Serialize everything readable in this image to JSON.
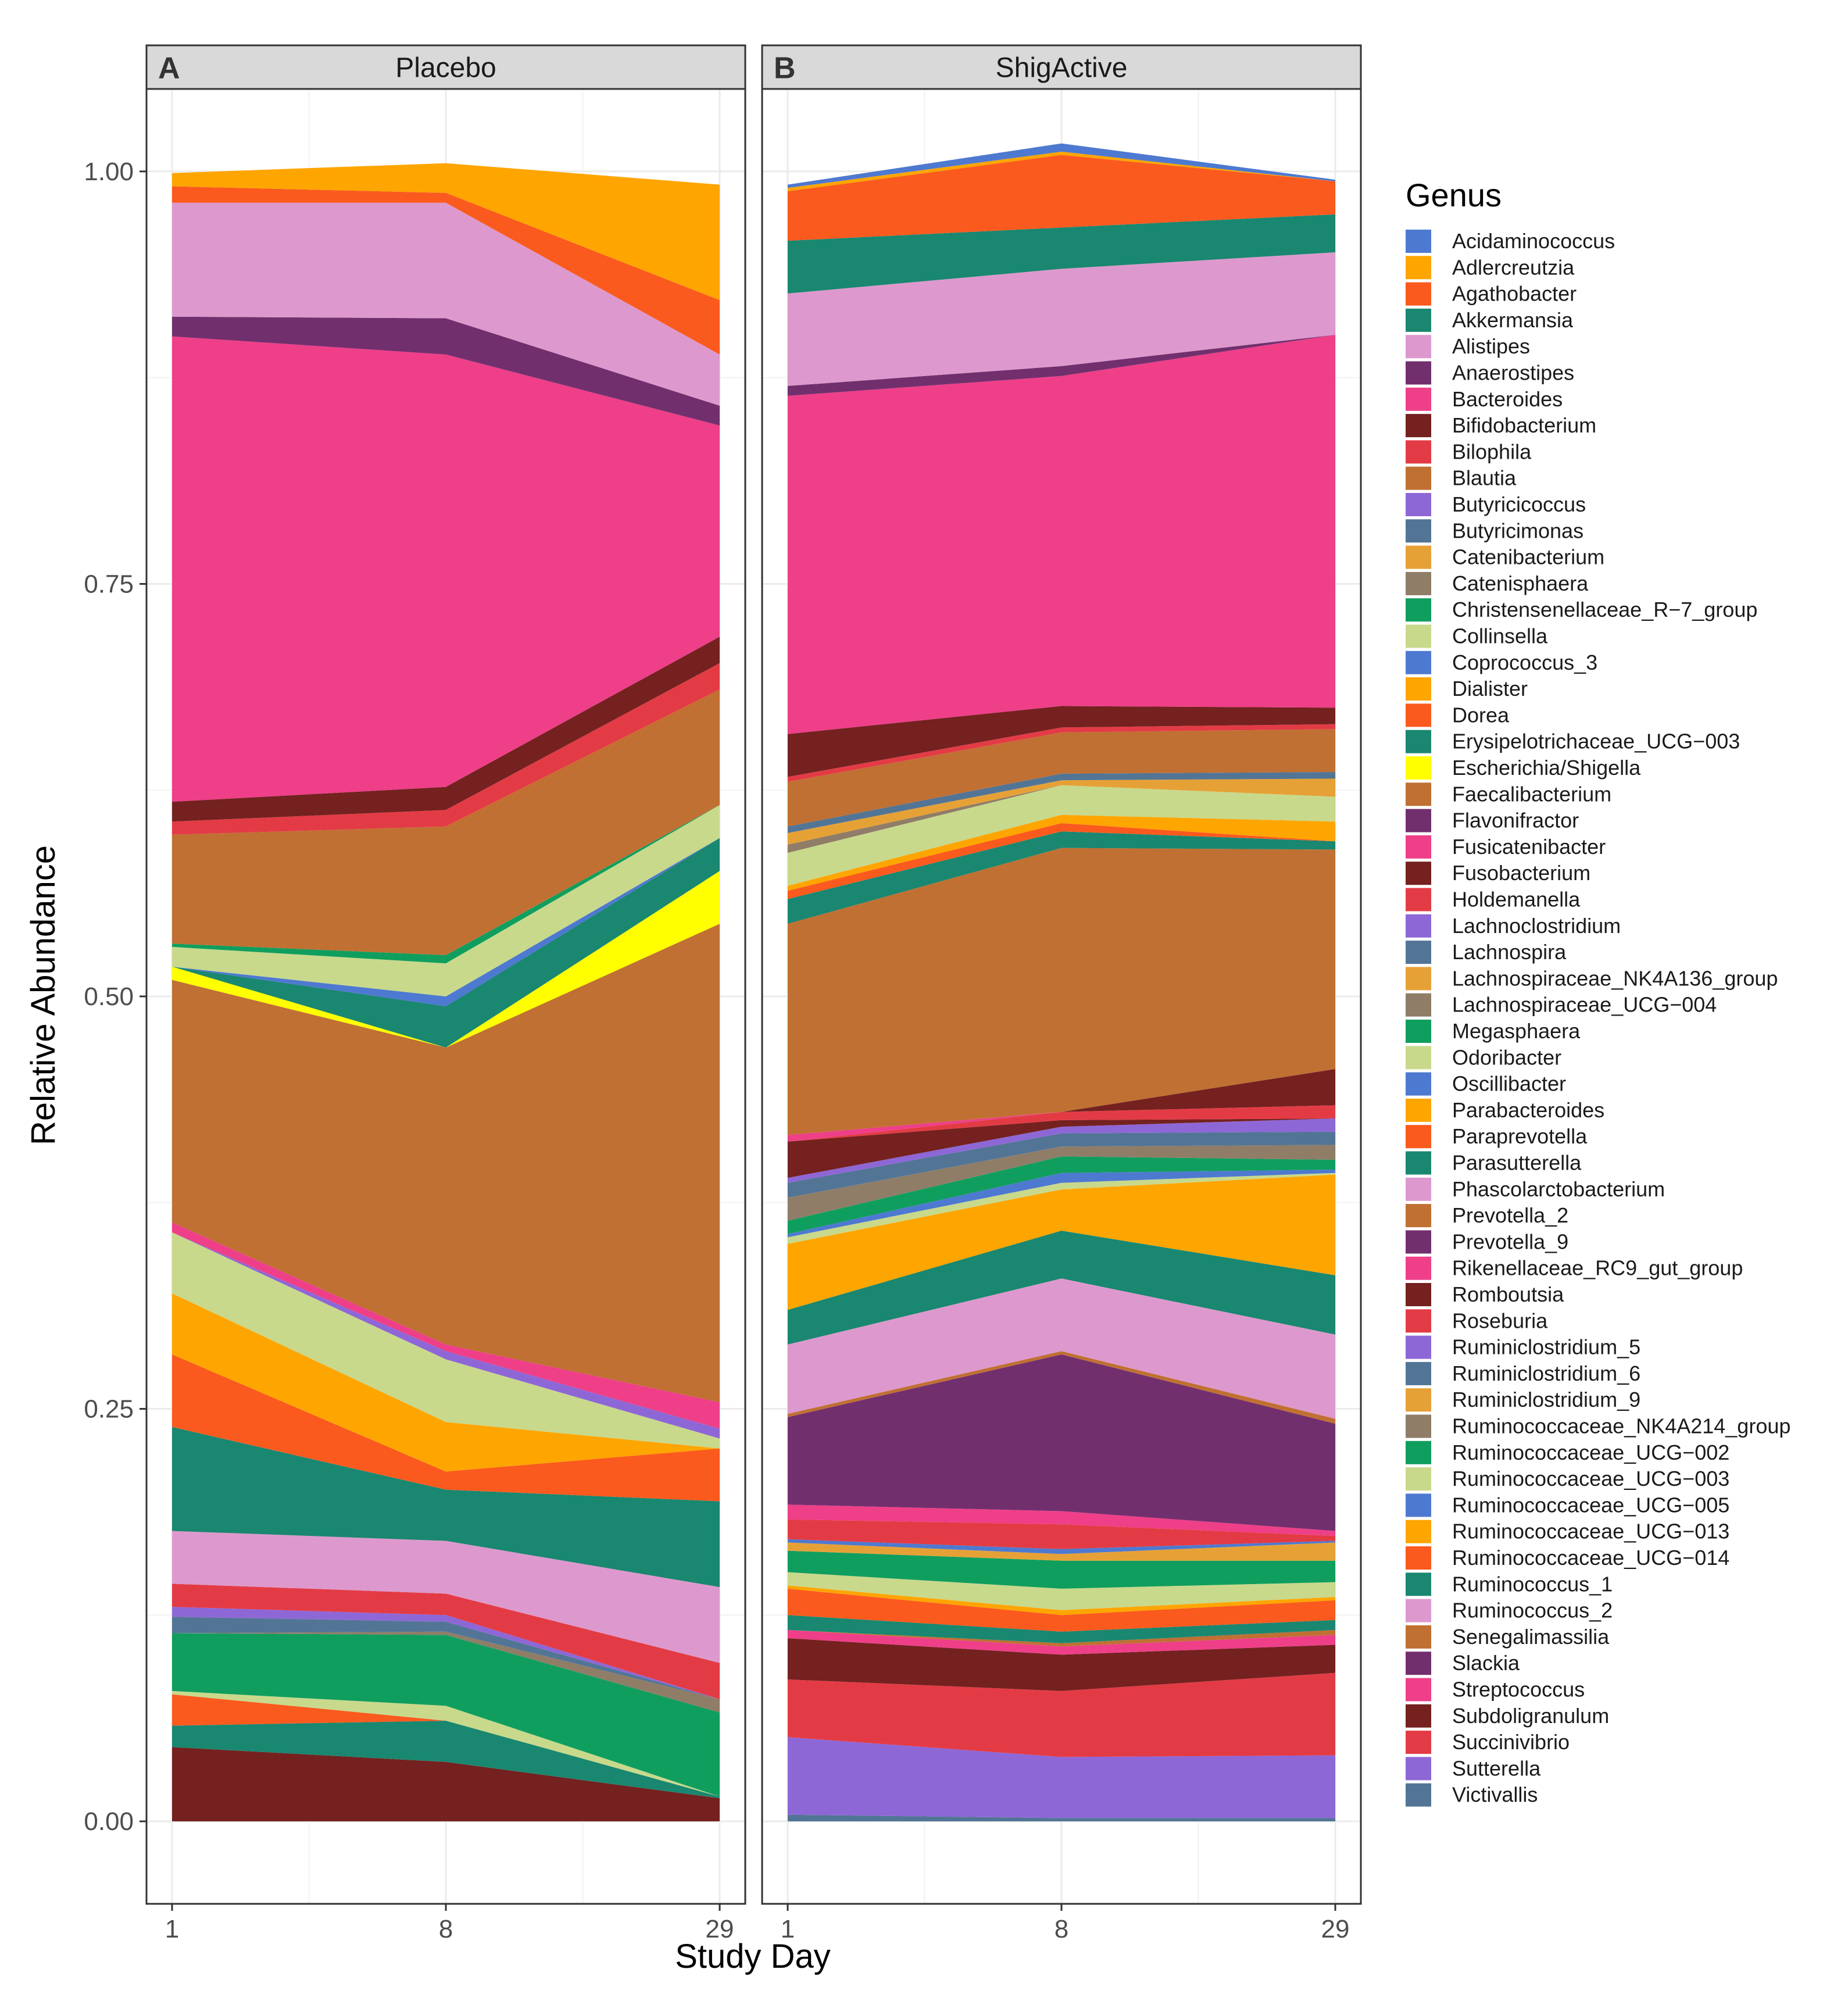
{
  "chart_data": {
    "type": "area",
    "stacked": true,
    "xlabel": "Study Day",
    "ylabel": "Relative Abundance",
    "ylim": [
      -0.05,
      1.05
    ],
    "y_ticks": [
      "0.00",
      "0.25",
      "0.50",
      "0.75",
      "1.00"
    ],
    "x": [
      "1",
      "8",
      "29"
    ],
    "grid": true,
    "legend_title": "Genus",
    "legend_position": "right",
    "genera": [
      {
        "name": "Acidaminococcus",
        "color": "#4E79D0"
      },
      {
        "name": "Adlercreutzia",
        "color": "#FFA500"
      },
      {
        "name": "Agathobacter",
        "color": "#FA5A1E"
      },
      {
        "name": "Akkermansia",
        "color": "#1A8770"
      },
      {
        "name": "Alistipes",
        "color": "#DD99CD"
      },
      {
        "name": "Anaerostipes",
        "color": "#722F6E"
      },
      {
        "name": "Bacteroides",
        "color": "#EE3F88"
      },
      {
        "name": "Bifidobacterium",
        "color": "#742120"
      },
      {
        "name": "Bilophila",
        "color": "#E33B45"
      },
      {
        "name": "Blautia",
        "color": "#C07033"
      },
      {
        "name": "Butyricicoccus",
        "color": "#8E67D6"
      },
      {
        "name": "Butyricimonas",
        "color": "#527596"
      },
      {
        "name": "Catenibacterium",
        "color": "#E6A136"
      },
      {
        "name": "Catenisphaera",
        "color": "#8F7D68"
      },
      {
        "name": "Christensenellaceae_R−7_group",
        "color": "#109E5E"
      },
      {
        "name": "Collinsella",
        "color": "#C8D98C"
      },
      {
        "name": "Coprococcus_3",
        "color": "#4E79D0"
      },
      {
        "name": "Dialister",
        "color": "#FFA500"
      },
      {
        "name": "Dorea",
        "color": "#FA5A1E"
      },
      {
        "name": "Erysipelotrichaceae_UCG−003",
        "color": "#1A8770"
      },
      {
        "name": "Escherichia/Shigella",
        "color": "#FFFF00"
      },
      {
        "name": "Faecalibacterium",
        "color": "#C07033"
      },
      {
        "name": "Flavonifractor",
        "color": "#722F6E"
      },
      {
        "name": "Fusicatenibacter",
        "color": "#EE3F88"
      },
      {
        "name": "Fusobacterium",
        "color": "#742120"
      },
      {
        "name": "Holdemanella",
        "color": "#E33B45"
      },
      {
        "name": "Lachnoclostridium",
        "color": "#8E67D6"
      },
      {
        "name": "Lachnospira",
        "color": "#527596"
      },
      {
        "name": "Lachnospiraceae_NK4A136_group",
        "color": "#E6A136"
      },
      {
        "name": "Lachnospiraceae_UCG−004",
        "color": "#8F7D68"
      },
      {
        "name": "Megasphaera",
        "color": "#109E5E"
      },
      {
        "name": "Odoribacter",
        "color": "#C8D98C"
      },
      {
        "name": "Oscillibacter",
        "color": "#4E79D0"
      },
      {
        "name": "Parabacteroides",
        "color": "#FFA500"
      },
      {
        "name": "Paraprevotella",
        "color": "#FA5A1E"
      },
      {
        "name": "Parasutterella",
        "color": "#1A8770"
      },
      {
        "name": "Phascolarctobacterium",
        "color": "#DD99CD"
      },
      {
        "name": "Prevotella_2",
        "color": "#C07033"
      },
      {
        "name": "Prevotella_9",
        "color": "#722F6E"
      },
      {
        "name": "Rikenellaceae_RC9_gut_group",
        "color": "#EE3F88"
      },
      {
        "name": "Romboutsia",
        "color": "#742120"
      },
      {
        "name": "Roseburia",
        "color": "#E33B45"
      },
      {
        "name": "Ruminiclostridium_5",
        "color": "#8E67D6"
      },
      {
        "name": "Ruminiclostridium_6",
        "color": "#527596"
      },
      {
        "name": "Ruminiclostridium_9",
        "color": "#E6A136"
      },
      {
        "name": "Ruminococcaceae_NK4A214_group",
        "color": "#8F7D68"
      },
      {
        "name": "Ruminococcaceae_UCG−002",
        "color": "#109E5E"
      },
      {
        "name": "Ruminococcaceae_UCG−003",
        "color": "#C8D98C"
      },
      {
        "name": "Ruminococcaceae_UCG−005",
        "color": "#4E79D0"
      },
      {
        "name": "Ruminococcaceae_UCG−013",
        "color": "#FFA500"
      },
      {
        "name": "Ruminococcaceae_UCG−014",
        "color": "#FA5A1E"
      },
      {
        "name": "Ruminococcus_1",
        "color": "#1A8770"
      },
      {
        "name": "Ruminococcus_2",
        "color": "#DD99CD"
      },
      {
        "name": "Senegalimassilia",
        "color": "#C07033"
      },
      {
        "name": "Slackia",
        "color": "#722F6E"
      },
      {
        "name": "Streptococcus",
        "color": "#EE3F88"
      },
      {
        "name": "Subdoligranulum",
        "color": "#742120"
      },
      {
        "name": "Succinivibrio",
        "color": "#E33B45"
      },
      {
        "name": "Sutterella",
        "color": "#8E67D6"
      },
      {
        "name": "Victivallis",
        "color": "#527596"
      }
    ],
    "panels": [
      {
        "tag": "A",
        "title": "Placebo",
        "layers": [
          {
            "genus": "Subdoligranulum",
            "values": [
              0.045,
              0.036,
              0.014
            ]
          },
          {
            "genus": "Ruminococcus_1",
            "values": [
              0.013,
              0.025,
              0.001
            ]
          },
          {
            "genus": "Ruminococcaceae_UCG−014",
            "values": [
              0.019,
              0.0,
              0.0
            ]
          },
          {
            "genus": "Ruminococcaceae_UCG−003",
            "values": [
              0.002,
              0.009,
              0.0
            ]
          },
          {
            "genus": "Ruminococcaceae_UCG−002",
            "values": [
              0.035,
              0.043,
              0.051
            ]
          },
          {
            "genus": "Ruminococcaceae_NK4A214_group",
            "values": [
              0.0,
              0.002,
              0.008
            ]
          },
          {
            "genus": "Ruminiclostridium_6",
            "values": [
              0.01,
              0.006,
              0.0
            ]
          },
          {
            "genus": "Ruminiclostridium_5",
            "values": [
              0.006,
              0.004,
              0.0
            ]
          },
          {
            "genus": "Roseburia",
            "values": [
              0.014,
              0.013,
              0.022
            ]
          },
          {
            "genus": "Ruminococcus_2",
            "values": [
              0.032,
              0.032,
              0.046
            ]
          },
          {
            "genus": "Ruminococcus_1",
            "values": [
              0.063,
              0.031,
              0.052
            ]
          },
          {
            "genus": "Ruminococcaceae_UCG−014",
            "values": [
              0.044,
              0.011,
              0.032
            ]
          },
          {
            "genus": "Ruminococcaceae_UCG−013",
            "values": [
              0.037,
              0.03,
              0.0
            ]
          },
          {
            "genus": "Ruminococcaceae_UCG−003",
            "values": [
              0.037,
              0.038,
              0.006
            ]
          },
          {
            "genus": "Ruminiclostridium_5",
            "values": [
              0.0,
              0.005,
              0.006
            ]
          },
          {
            "genus": "Rikenellaceae_RC9_gut_group",
            "values": [
              0.006,
              0.004,
              0.016
            ]
          },
          {
            "genus": "Prevotella_2",
            "values": [
              0.147,
              0.18,
              0.29
            ]
          },
          {
            "genus": "Escherichia/Shigella",
            "values": [
              0.008,
              0.0,
              0.032
            ]
          },
          {
            "genus": "Parasutterella",
            "values": [
              0.0,
              0.025,
              0.02
            ]
          },
          {
            "genus": "Oscillibacter",
            "values": [
              0.0,
              0.006,
              0.0
            ]
          },
          {
            "genus": "Odoribacter",
            "values": [
              0.012,
              0.02,
              0.02
            ]
          },
          {
            "genus": "Megasphaera",
            "values": [
              0.002,
              0.005,
              0.0
            ]
          },
          {
            "genus": "Faecalibacterium",
            "values": [
              0.066,
              0.078,
              0.07
            ]
          },
          {
            "genus": "Bilophila",
            "values": [
              0.008,
              0.01,
              0.016
            ]
          },
          {
            "genus": "Bifidobacterium",
            "values": [
              0.012,
              0.014,
              0.016
            ]
          },
          {
            "genus": "Bacteroides",
            "values": [
              0.282,
              0.262,
              0.128
            ]
          },
          {
            "genus": "Anaerostipes",
            "values": [
              0.012,
              0.022,
              0.012
            ]
          },
          {
            "genus": "Alistipes",
            "values": [
              0.069,
              0.07,
              0.031
            ]
          },
          {
            "genus": "Agathobacter",
            "values": [
              0.01,
              0.006,
              0.033
            ]
          },
          {
            "genus": "Adlercreutzia",
            "values": [
              0.008,
              0.018,
              0.07
            ]
          }
        ]
      },
      {
        "tag": "B",
        "title": "ShigActive",
        "layers": [
          {
            "genus": "Victivallis",
            "values": [
              0.004,
              0.002,
              0.002
            ]
          },
          {
            "genus": "Sutterella",
            "values": [
              0.047,
              0.037,
              0.038
            ]
          },
          {
            "genus": "Succinivibrio",
            "values": [
              0.035,
              0.04,
              0.05
            ]
          },
          {
            "genus": "Subdoligranulum",
            "values": [
              0.025,
              0.022,
              0.017
            ]
          },
          {
            "genus": "Streptococcus",
            "values": [
              0.005,
              0.005,
              0.006
            ]
          },
          {
            "genus": "Senegalimassilia",
            "values": [
              0.0,
              0.002,
              0.003
            ]
          },
          {
            "genus": "Ruminococcus_1",
            "values": [
              0.009,
              0.007,
              0.006
            ]
          },
          {
            "genus": "Ruminococcaceae_UCG−014",
            "values": [
              0.016,
              0.01,
              0.012
            ]
          },
          {
            "genus": "Ruminococcaceae_UCG−013",
            "values": [
              0.002,
              0.003,
              0.002
            ]
          },
          {
            "genus": "Ruminococcaceae_UCG−003",
            "values": [
              0.008,
              0.013,
              0.009
            ]
          },
          {
            "genus": "Ruminococcaceae_UCG−002",
            "values": [
              0.013,
              0.017,
              0.013
            ]
          },
          {
            "genus": "Ruminiclostridium_9",
            "values": [
              0.005,
              0.004,
              0.011
            ]
          },
          {
            "genus": "Ruminococcaceae_UCG−005",
            "values": [
              0.002,
              0.003,
              0.001
            ]
          },
          {
            "genus": "Roseburia",
            "values": [
              0.012,
              0.015,
              0.003
            ]
          },
          {
            "genus": "Streptococcus",
            "values": [
              0.009,
              0.008,
              0.003
            ]
          },
          {
            "genus": "Slackia",
            "values": [
              0.053,
              0.095,
              0.065
            ]
          },
          {
            "genus": "Senegalimassilia",
            "values": [
              0.002,
              0.002,
              0.003
            ]
          },
          {
            "genus": "Ruminococcus_2",
            "values": [
              0.042,
              0.044,
              0.051
            ]
          },
          {
            "genus": "Ruminococcus_1",
            "values": [
              0.021,
              0.029,
              0.036
            ]
          },
          {
            "genus": "Ruminococcaceae_UCG−013",
            "values": [
              0.04,
              0.025,
              0.061
            ]
          },
          {
            "genus": "Ruminococcaceae_UCG−003",
            "values": [
              0.004,
              0.004,
              0.001
            ]
          },
          {
            "genus": "Ruminococcaceae_UCG−005",
            "values": [
              0.002,
              0.006,
              0.002
            ]
          },
          {
            "genus": "Ruminococcaceae_UCG−002",
            "values": [
              0.008,
              0.01,
              0.006
            ]
          },
          {
            "genus": "Ruminococcaceae_NK4A214_group",
            "values": [
              0.014,
              0.006,
              0.009
            ]
          },
          {
            "genus": "Ruminiclostridium_6",
            "values": [
              0.009,
              0.008,
              0.008
            ]
          },
          {
            "genus": "Ruminiclostridium_5",
            "values": [
              0.003,
              0.004,
              0.008
            ]
          },
          {
            "genus": "Romboutsia",
            "values": [
              0.022,
              0.004,
              0.0
            ]
          },
          {
            "genus": "Roseburia",
            "values": [
              0.0,
              0.005,
              0.008
            ]
          },
          {
            "genus": "Rikenellaceae_RC9_gut_group",
            "values": [
              0.004,
              0.0,
              0.0
            ]
          },
          {
            "genus": "Romboutsia",
            "values": [
              0.0,
              0.0,
              0.022
            ]
          },
          {
            "genus": "Prevotella_2",
            "values": [
              0.128,
              0.16,
              0.133
            ]
          },
          {
            "genus": "Parasutterella",
            "values": [
              0.015,
              0.01,
              0.005
            ]
          },
          {
            "genus": "Paraprevotella",
            "values": [
              0.005,
              0.005,
              0.0
            ]
          },
          {
            "genus": "Parabacteroides",
            "values": [
              0.003,
              0.005,
              0.012
            ]
          },
          {
            "genus": "Odoribacter",
            "values": [
              0.02,
              0.018,
              0.015
            ]
          },
          {
            "genus": "Lachnospiraceae_UCG−004",
            "values": [
              0.005,
              0.0,
              0.0
            ]
          },
          {
            "genus": "Lachnospiraceae_NK4A136_group",
            "values": [
              0.007,
              0.003,
              0.011
            ]
          },
          {
            "genus": "Lachnospira",
            "values": [
              0.004,
              0.004,
              0.004
            ]
          },
          {
            "genus": "Faecalibacterium",
            "values": [
              0.027,
              0.025,
              0.026
            ]
          },
          {
            "genus": "Holdemanella",
            "values": [
              0.003,
              0.003,
              0.003
            ]
          },
          {
            "genus": "Bifidobacterium",
            "values": [
              0.026,
              0.013,
              0.01
            ]
          },
          {
            "genus": "Bacteroides",
            "values": [
              0.205,
              0.2,
              0.226
            ]
          },
          {
            "genus": "Anaerostipes",
            "values": [
              0.006,
              0.006,
              0.0
            ]
          },
          {
            "genus": "Alistipes",
            "values": [
              0.056,
              0.059,
              0.05
            ]
          },
          {
            "genus": "Akkermansia",
            "values": [
              0.032,
              0.025,
              0.023
            ]
          },
          {
            "genus": "Agathobacter",
            "values": [
              0.03,
              0.044,
              0.02
            ]
          },
          {
            "genus": "Adlercreutzia",
            "values": [
              0.002,
              0.002,
              0.0
            ]
          },
          {
            "genus": "Acidaminococcus",
            "values": [
              0.002,
              0.005,
              0.001
            ]
          }
        ]
      }
    ]
  }
}
